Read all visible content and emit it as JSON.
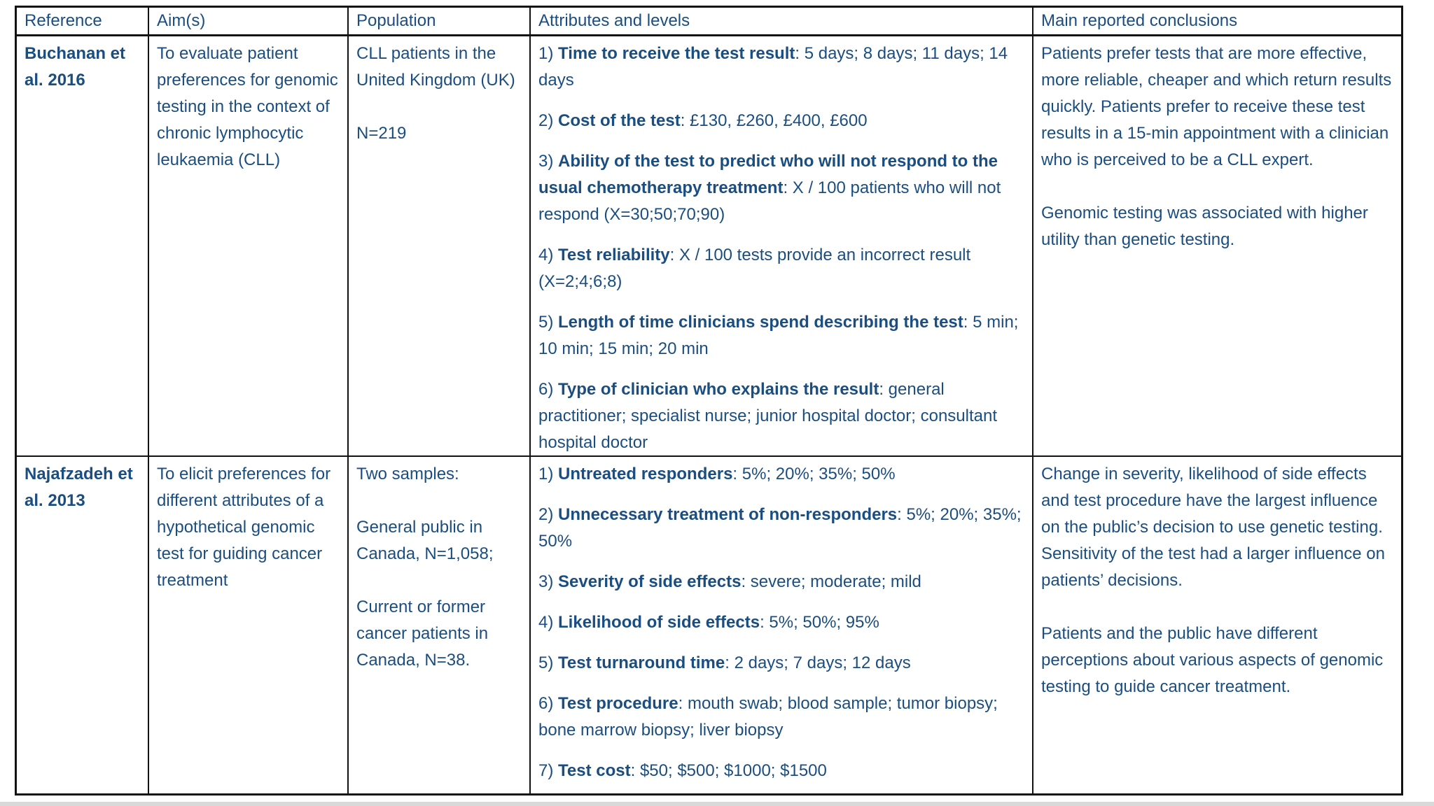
{
  "page": {
    "text_color": "#1b4e80",
    "border_color": "#121212",
    "background": "#ffffff"
  },
  "table": {
    "columns": [
      "Reference",
      "Aim(s)",
      "Population",
      "Attributes and levels",
      "Main reported conclusions"
    ],
    "rows": [
      {
        "reference": "Buchanan et al. 2016",
        "aims": [
          "To evaluate patient preferences for genomic testing in the context of chronic lymphocytic leukaemia (CLL)"
        ],
        "population": [
          "CLL patients in the United Kingdom (UK)",
          "N=219"
        ],
        "attributes": [
          {
            "num": "1) ",
            "name": "Time to receive the test result",
            "levels": ": 5 days; 8 days; 11 days; 14 days"
          },
          {
            "num": "2) ",
            "name": "Cost of the test",
            "levels": ": £130, £260, £400, £600"
          },
          {
            "num": "3) ",
            "name": "Ability of the test to predict who will not respond to the usual chemotherapy treatment",
            "levels": ": X / 100 patients who will not respond (X=30;50;70;90)"
          },
          {
            "num": "4) ",
            "name": "Test reliability",
            "levels": ": X / 100 tests provide an incorrect result (X=2;4;6;8)"
          },
          {
            "num": "5) ",
            "name": "Length of time clinicians spend describing the test",
            "levels": ": 5 min; 10 min; 15 min; 20 min"
          },
          {
            "num": "6) ",
            "name": "Type of clinician who explains the result",
            "levels": ": general practitioner; specialist nurse; junior hospital doctor; consultant hospital doctor"
          }
        ],
        "conclusions": [
          "Patients prefer tests that are more effective, more reliable, cheaper and which return results quickly. Patients prefer to receive these test results in a 15-min appointment with a clinician who is perceived to be a CLL expert.",
          "Genomic testing was associated with higher utility than genetic testing."
        ]
      },
      {
        "reference": "Najafzadeh et al. 2013",
        "aims": [
          "To elicit preferences for different attributes of a hypothetical genomic test for guiding cancer treatment"
        ],
        "population": [
          "Two samples:",
          "General public in Canada, N=1,058;",
          "Current or former cancer patients in Canada, N=38."
        ],
        "attributes": [
          {
            "num": "1) ",
            "name": "Untreated responders",
            "levels": ": 5%; 20%; 35%; 50%"
          },
          {
            "num": "2) ",
            "name": "Unnecessary treatment of non-responders",
            "levels": ": 5%; 20%; 35%; 50%"
          },
          {
            "num": "3) ",
            "name": "Severity of side effects",
            "levels": ": severe; moderate; mild"
          },
          {
            "num": "4) ",
            "name": "Likelihood of side effects",
            "levels": ": 5%; 50%; 95%"
          },
          {
            "num": "5) ",
            "name": "Test turnaround time",
            "levels": ": 2 days; 7 days; 12 days"
          },
          {
            "num": "6) ",
            "name": "Test procedure",
            "levels": ": mouth swab; blood sample; tumor biopsy; bone marrow biopsy; liver biopsy"
          },
          {
            "num": "7) ",
            "name": "Test cost",
            "levels": ": $50; $500; $1000; $1500"
          }
        ],
        "conclusions": [
          "Change in severity, likelihood of side effects and test procedure have the largest influence on the public’s decision to use genetic testing. Sensitivity of the test had a larger influence on patients’ decisions.",
          "Patients and the public have different perceptions about various aspects of genomic testing to guide cancer treatment."
        ]
      }
    ]
  }
}
